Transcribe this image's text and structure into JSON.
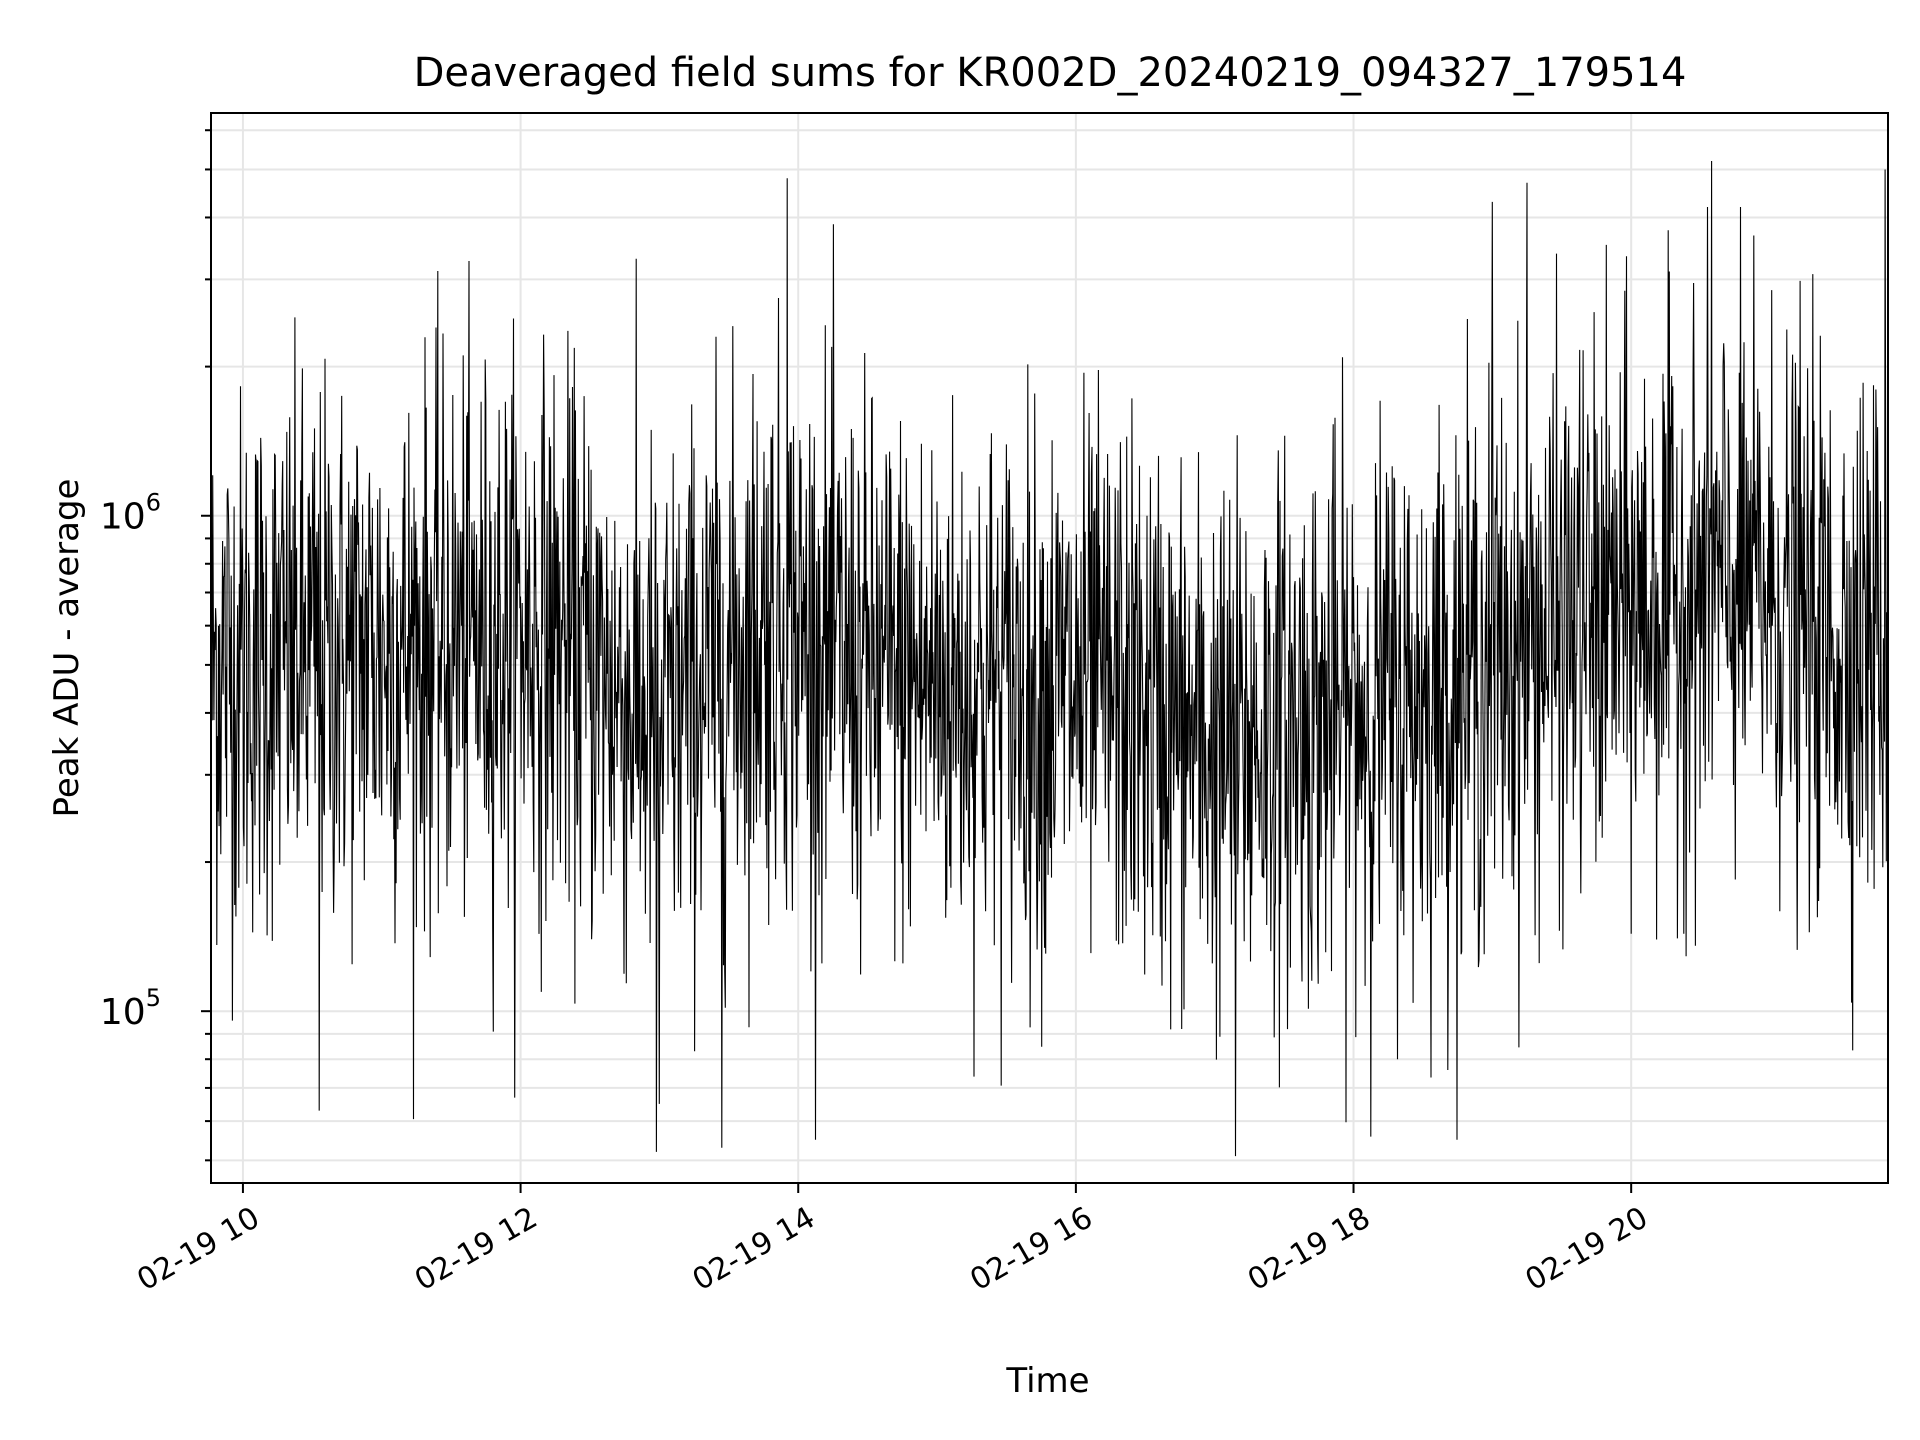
{
  "chart_data": {
    "type": "line",
    "title": "Deaveraged field sums for KR002D_20240219_094327_179514",
    "xlabel": "Time",
    "ylabel": "Peak ADU - average",
    "yscale": "log",
    "x_range_hours": [
      9.77,
      21.85
    ],
    "ylim": [
      45000,
      6500000
    ],
    "grid": true,
    "line_color": "#000000",
    "grid_color": "#e6e6e6",
    "x_ticks": [
      {
        "hour": 10,
        "label": "02-19 10"
      },
      {
        "hour": 12,
        "label": "02-19 12"
      },
      {
        "hour": 14,
        "label": "02-19 14"
      },
      {
        "hour": 16,
        "label": "02-19 16"
      },
      {
        "hour": 18,
        "label": "02-19 18"
      },
      {
        "hour": 20,
        "label": "02-19 20"
      }
    ],
    "y_ticks": [
      {
        "value": 100000,
        "base": "10",
        "exponent": "5"
      },
      {
        "value": 1000000,
        "base": "10",
        "exponent": "6"
      }
    ],
    "series": [
      {
        "trend": [
          {
            "hour": 9.77,
            "median": 500000
          },
          {
            "hour": 10.5,
            "median": 520000
          },
          {
            "hour": 11.5,
            "median": 560000
          },
          {
            "hour": 12.2,
            "median": 580000
          },
          {
            "hour": 13.0,
            "median": 380000
          },
          {
            "hour": 13.8,
            "median": 620000
          },
          {
            "hour": 14.5,
            "median": 480000
          },
          {
            "hour": 15.2,
            "median": 450000
          },
          {
            "hour": 16.3,
            "median": 440000
          },
          {
            "hour": 17.0,
            "median": 330000
          },
          {
            "hour": 17.6,
            "median": 380000
          },
          {
            "hour": 18.5,
            "median": 430000
          },
          {
            "hour": 19.5,
            "median": 600000
          },
          {
            "hour": 20.3,
            "median": 680000
          },
          {
            "hour": 20.9,
            "median": 720000
          },
          {
            "hour": 21.4,
            "median": 560000
          },
          {
            "hour": 21.85,
            "median": 560000
          }
        ],
        "spread_dex": 0.5,
        "n_points": 2900,
        "notable": [
          {
            "hour": 13.92,
            "value": 4800000
          },
          {
            "hour": 20.58,
            "value": 5200000
          },
          {
            "hour": 19.0,
            "value": 4300000
          },
          {
            "hour": 19.25,
            "value": 4700000
          },
          {
            "hour": 21.83,
            "value": 5000000
          },
          {
            "hour": 12.98,
            "value": 52000
          },
          {
            "hour": 17.15,
            "value": 51000
          },
          {
            "hour": 13.45,
            "value": 53000
          },
          {
            "hour": 10.55,
            "value": 63000
          },
          {
            "hour": 13.0,
            "value": 65000
          }
        ]
      }
    ]
  }
}
